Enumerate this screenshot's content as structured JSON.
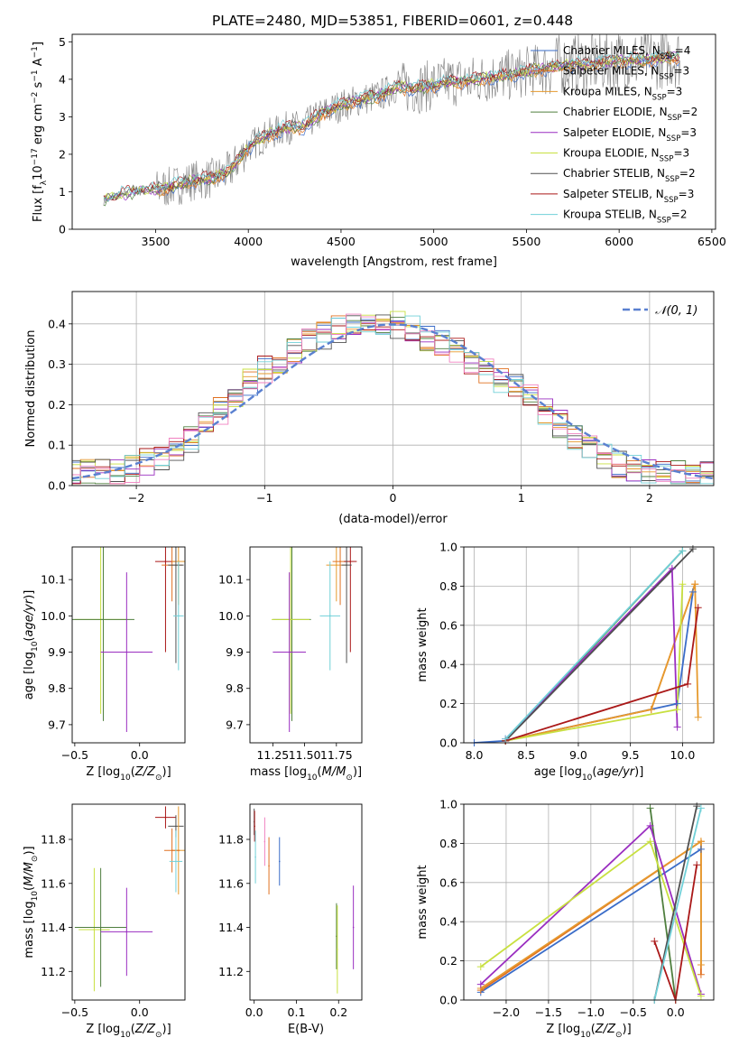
{
  "title": "PLATE=2480, MJD=53851, FIBERID=0601, z=0.448",
  "colors": {
    "Chabrier MILES": "#3a6cc8",
    "Salpeter MILES": "#e07020",
    "Kroupa MILES": "#e69a2e",
    "Chabrier ELODIE": "#4f7f3f",
    "Salpeter ELODIE": "#9a2ec0",
    "Kroupa ELODIE": "#c8e040",
    "Chabrier STELIB": "#505050",
    "Salpeter STELIB": "#aa1818",
    "Kroupa STELIB": "#70d0d8",
    "extra pink": "#f080c0",
    "normal": "#5a80d0",
    "data": "#808080"
  },
  "chart_data": [
    {
      "id": "spectrum",
      "type": "line",
      "xlabel": "wavelength [Angstrom, rest frame]",
      "ylabel": "Flux [f_λ 10^-17 erg cm^-2 s^-1 A^-1]",
      "xlim": [
        3050,
        6520
      ],
      "ylim": [
        0,
        5.2
      ],
      "xticks": [
        3500,
        4000,
        4500,
        5000,
        5500,
        6000,
        6500
      ],
      "yticks": [
        0,
        1,
        2,
        3,
        4,
        5
      ],
      "legend_position": "upper-right",
      "legend": [
        {
          "base": "Chabrier MILES",
          "sub": "SSP",
          "n": "4"
        },
        {
          "base": "Salpeter MILES",
          "sub": "SSP",
          "n": "3"
        },
        {
          "base": "Kroupa MILES",
          "sub": "SSP",
          "n": "3"
        },
        {
          "base": "Chabrier ELODIE",
          "sub": "SSP",
          "n": "2"
        },
        {
          "base": "Salpeter ELODIE",
          "sub": "SSP",
          "n": "3"
        },
        {
          "base": "Kroupa ELODIE",
          "sub": "SSP",
          "n": "3"
        },
        {
          "base": "Chabrier STELIB",
          "sub": "SSP",
          "n": "2"
        },
        {
          "base": "Salpeter STELIB",
          "sub": "SSP",
          "n": "3"
        },
        {
          "base": "Kroupa STELIB",
          "sub": "SSP",
          "n": "2"
        }
      ],
      "continuum": [
        [
          3220,
          0.75
        ],
        [
          3300,
          0.9
        ],
        [
          3400,
          1.0
        ],
        [
          3500,
          1.05
        ],
        [
          3600,
          1.15
        ],
        [
          3700,
          1.3
        ],
        [
          3800,
          1.35
        ],
        [
          3900,
          1.55
        ],
        [
          4000,
          2.2
        ],
        [
          4100,
          2.5
        ],
        [
          4200,
          2.7
        ],
        [
          4300,
          2.75
        ],
        [
          4400,
          3.1
        ],
        [
          4500,
          3.3
        ],
        [
          4600,
          3.45
        ],
        [
          4700,
          3.55
        ],
        [
          4800,
          3.8
        ],
        [
          4900,
          3.75
        ],
        [
          5000,
          3.85
        ],
        [
          5100,
          3.95
        ],
        [
          5200,
          3.95
        ],
        [
          5300,
          4.05
        ],
        [
          5400,
          4.1
        ],
        [
          5500,
          4.2
        ],
        [
          5600,
          4.3
        ],
        [
          5700,
          4.4
        ],
        [
          5800,
          4.4
        ],
        [
          5900,
          4.45
        ],
        [
          6000,
          4.5
        ],
        [
          6100,
          4.5
        ],
        [
          6200,
          4.55
        ],
        [
          6330,
          4.6
        ]
      ],
      "models": [
        {
          "name": "Chabrier MILES",
          "range": [
            3500,
            6330
          ]
        },
        {
          "name": "Salpeter MILES",
          "range": [
            3500,
            6330
          ]
        },
        {
          "name": "Kroupa MILES",
          "range": [
            3500,
            6330
          ]
        },
        {
          "name": "Chabrier ELODIE",
          "range": [
            3220,
            6330
          ]
        },
        {
          "name": "Salpeter ELODIE",
          "range": [
            3220,
            6330
          ]
        },
        {
          "name": "Kroupa ELODIE",
          "range": [
            3220,
            6330
          ]
        },
        {
          "name": "Chabrier STELIB",
          "range": [
            3220,
            6330
          ]
        },
        {
          "name": "Salpeter STELIB",
          "range": [
            3220,
            6330
          ]
        },
        {
          "name": "Kroupa STELIB",
          "range": [
            3220,
            6330
          ]
        }
      ]
    },
    {
      "id": "residuals",
      "type": "line",
      "xlabel": "(data-model)/error",
      "ylabel": "Normed distribution",
      "xlim": [
        -2.5,
        2.5
      ],
      "ylim": [
        0,
        0.48
      ],
      "xticks": [
        -2,
        -1,
        0,
        1,
        2
      ],
      "yticks": [
        0.0,
        0.1,
        0.2,
        0.3,
        0.4
      ],
      "grid": true,
      "legend_position": "upper-right",
      "legend": [
        "𝒩(0, 1)"
      ],
      "bin_width": 0.1,
      "histogram_envelope": [
        0.03,
        0.03,
        0.05,
        0.06,
        0.07,
        0.09,
        0.11,
        0.14,
        0.17,
        0.2,
        0.23,
        0.26,
        0.29,
        0.31,
        0.33,
        0.35,
        0.36,
        0.38,
        0.39,
        0.4,
        0.41,
        0.41,
        0.4,
        0.39,
        0.38,
        0.36,
        0.35,
        0.33,
        0.31,
        0.29,
        0.27,
        0.25,
        0.23,
        0.21,
        0.18,
        0.15,
        0.12,
        0.1,
        0.08,
        0.06,
        0.05,
        0.04,
        0.035,
        0.03,
        0.03
      ]
    },
    {
      "id": "age_vs_Z",
      "type": "scatter",
      "xlabel": "Z [log10(Z/Z⊙)]",
      "ylabel": "age  [log10(age/yr)]",
      "xlim": [
        -0.52,
        0.35
      ],
      "ylim": [
        9.65,
        10.19
      ],
      "xticks": [
        -0.5,
        0.0
      ],
      "yticks": [
        9.7,
        9.8,
        9.9,
        10.0,
        10.1
      ],
      "points": [
        {
          "c": "Kroupa ELODIE",
          "x": -0.3,
          "y": 9.99,
          "ex": 0.2,
          "ey": 0.26
        },
        {
          "c": "Chabrier ELODIE",
          "x": -0.28,
          "y": 9.99,
          "ex": 0.24,
          "ey": 0.28
        },
        {
          "c": "Salpeter ELODIE",
          "x": -0.1,
          "y": 9.9,
          "ex": 0.2,
          "ey": 0.22
        },
        {
          "c": "Salpeter STELIB",
          "x": 0.2,
          "y": 10.15,
          "ex": 0.08,
          "ey": 0.25
        },
        {
          "c": "Kroupa MILES",
          "x": 0.3,
          "y": 10.15,
          "ex": 0.05,
          "ey": 0.12
        },
        {
          "c": "Salpeter MILES",
          "x": 0.25,
          "y": 10.14,
          "ex": 0.08,
          "ey": 0.1
        },
        {
          "c": "Chabrier STELIB",
          "x": 0.28,
          "y": 10.14,
          "ex": 0.06,
          "ey": 0.27
        },
        {
          "c": "Kroupa STELIB",
          "x": 0.3,
          "y": 10.0,
          "ex": 0.04,
          "ey": 0.15
        }
      ]
    },
    {
      "id": "age_vs_mass",
      "type": "scatter",
      "xlabel": "mass [log10(M/M⊙)]",
      "ylabel": "",
      "xlim": [
        11.07,
        11.95
      ],
      "ylim": [
        9.65,
        10.19
      ],
      "xticks": [
        11.25,
        11.5,
        11.75
      ],
      "yticks": [
        9.7,
        9.8,
        9.9,
        10.0,
        10.1
      ],
      "points": [
        {
          "c": "Chabrier ELODIE",
          "x": 11.4,
          "y": 9.99,
          "ex": 0.15,
          "ey": 0.28
        },
        {
          "c": "Kroupa ELODIE",
          "x": 11.39,
          "y": 9.99,
          "ex": 0.15,
          "ey": 0.26
        },
        {
          "c": "Salpeter ELODIE",
          "x": 11.38,
          "y": 9.9,
          "ex": 0.13,
          "ey": 0.22
        },
        {
          "c": "Kroupa MILES",
          "x": 11.75,
          "y": 10.14,
          "ex": 0.08,
          "ey": 0.1
        },
        {
          "c": "Salpeter MILES",
          "x": 11.78,
          "y": 10.15,
          "ex": 0.06,
          "ey": 0.12
        },
        {
          "c": "Salpeter STELIB",
          "x": 11.86,
          "y": 10.15,
          "ex": 0.05,
          "ey": 0.25
        },
        {
          "c": "Chabrier STELIB",
          "x": 11.83,
          "y": 10.14,
          "ex": 0.04,
          "ey": 0.27
        },
        {
          "c": "Kroupa STELIB",
          "x": 11.7,
          "y": 10.0,
          "ex": 0.08,
          "ey": 0.15
        }
      ]
    },
    {
      "id": "weight_vs_age",
      "type": "line",
      "xlabel": "age  [log10(age/yr)]",
      "ylabel": "mass weight",
      "xlim": [
        7.9,
        10.3
      ],
      "ylim": [
        0,
        1
      ],
      "xticks": [
        8.0,
        8.5,
        9.0,
        9.5,
        10.0
      ],
      "yticks": [
        0.0,
        0.2,
        0.4,
        0.6,
        0.8,
        1.0
      ],
      "grid": true,
      "series": [
        {
          "c": "Chabrier MILES",
          "pts": [
            [
              8.0,
              0.0
            ],
            [
              8.3,
              0.01
            ],
            [
              9.95,
              0.2
            ],
            [
              10.1,
              0.77
            ]
          ]
        },
        {
          "c": "Salpeter MILES",
          "pts": [
            [
              8.3,
              0.01
            ],
            [
              9.7,
              0.17
            ],
            [
              10.12,
              0.81
            ]
          ]
        },
        {
          "c": "Kroupa MILES",
          "pts": [
            [
              8.3,
              0.01
            ],
            [
              9.7,
              0.17
            ],
            [
              10.12,
              0.81
            ],
            [
              10.15,
              0.13
            ]
          ]
        },
        {
          "c": "Chabrier ELODIE",
          "pts": [
            [
              8.3,
              0.01
            ],
            [
              10.0,
              0.98
            ]
          ]
        },
        {
          "c": "Salpeter ELODIE",
          "pts": [
            [
              8.3,
              0.02
            ],
            [
              9.9,
              0.89
            ],
            [
              9.95,
              0.08
            ]
          ]
        },
        {
          "c": "Kroupa ELODIE",
          "pts": [
            [
              8.3,
              0.01
            ],
            [
              9.95,
              0.17
            ],
            [
              10.0,
              0.81
            ]
          ]
        },
        {
          "c": "Chabrier STELIB",
          "pts": [
            [
              8.3,
              0.01
            ],
            [
              10.1,
              0.99
            ]
          ]
        },
        {
          "c": "Salpeter STELIB",
          "pts": [
            [
              8.3,
              0.01
            ],
            [
              10.05,
              0.3
            ],
            [
              10.15,
              0.69
            ]
          ]
        },
        {
          "c": "Kroupa STELIB",
          "pts": [
            [
              8.3,
              0.02
            ],
            [
              10.0,
              0.98
            ]
          ]
        }
      ]
    },
    {
      "id": "mass_vs_Z",
      "type": "scatter",
      "xlabel": "Z [log10(Z/Z⊙)]",
      "ylabel": "mass [log10(M/M⊙)]",
      "xlim": [
        -0.52,
        0.35
      ],
      "ylim": [
        11.07,
        11.96
      ],
      "xticks": [
        -0.5,
        0.0
      ],
      "yticks": [
        11.2,
        11.4,
        11.6,
        11.8
      ],
      "points": [
        {
          "c": "Kroupa ELODIE",
          "x": -0.35,
          "y": 11.39,
          "ex": 0.12,
          "ey": 0.28
        },
        {
          "c": "Chabrier ELODIE",
          "x": -0.3,
          "y": 11.4,
          "ex": 0.2,
          "ey": 0.27
        },
        {
          "c": "Salpeter ELODIE",
          "x": -0.1,
          "y": 11.38,
          "ex": 0.2,
          "ey": 0.2
        },
        {
          "c": "Salpeter STELIB",
          "x": 0.2,
          "y": 11.9,
          "ex": 0.08,
          "ey": 0.05
        },
        {
          "c": "Chabrier STELIB",
          "x": 0.28,
          "y": 11.86,
          "ex": 0.06,
          "ey": 0.05
        },
        {
          "c": "Kroupa MILES",
          "x": 0.3,
          "y": 11.75,
          "ex": 0.05,
          "ey": 0.2
        },
        {
          "c": "Salpeter MILES",
          "x": 0.25,
          "y": 11.75,
          "ex": 0.06,
          "ey": 0.1
        },
        {
          "c": "Kroupa STELIB",
          "x": 0.28,
          "y": 11.7,
          "ex": 0.05,
          "ey": 0.14
        }
      ]
    },
    {
      "id": "mass_vs_EBV",
      "type": "scatter",
      "xlabel": "E(B-V)",
      "ylabel": "",
      "xlim": [
        -0.01,
        0.255
      ],
      "ylim": [
        11.07,
        11.96
      ],
      "xticks": [
        0.0,
        0.1,
        0.2
      ],
      "yticks": [
        11.2,
        11.4,
        11.6,
        11.8
      ],
      "points": [
        {
          "c": "Chabrier STELIB",
          "x": 0.0,
          "y": 11.88,
          "ex": 0,
          "ey": 0.06
        },
        {
          "c": "Salpeter STELIB",
          "x": 0.001,
          "y": 11.86,
          "ex": 0,
          "ey": 0.07
        },
        {
          "c": "Kroupa STELIB",
          "x": 0.003,
          "y": 11.72,
          "ex": 0,
          "ey": 0.12
        },
        {
          "c": "extra pink",
          "x": 0.025,
          "y": 11.79,
          "ex": 0,
          "ey": 0.11
        },
        {
          "c": "Salpeter MILES",
          "x": 0.035,
          "y": 11.68,
          "ex": 0,
          "ey": 0.13
        },
        {
          "c": "Chabrier MILES",
          "x": 0.06,
          "y": 11.7,
          "ex": 0,
          "ey": 0.11
        },
        {
          "c": "Chabrier ELODIE",
          "x": 0.195,
          "y": 11.36,
          "ex": 0,
          "ey": 0.15
        },
        {
          "c": "Kroupa ELODIE",
          "x": 0.197,
          "y": 11.3,
          "ex": 0,
          "ey": 0.2
        },
        {
          "c": "Salpeter ELODIE",
          "x": 0.235,
          "y": 11.4,
          "ex": 0,
          "ey": 0.19
        }
      ]
    },
    {
      "id": "weight_vs_Z",
      "type": "line",
      "xlabel": "Z [log10(Z/Z⊙)]",
      "ylabel": "mass weight",
      "xlim": [
        -2.5,
        0.45
      ],
      "ylim": [
        0,
        1
      ],
      "xticks": [
        -2.0,
        -1.5,
        -1.0,
        -0.5,
        0.0
      ],
      "yticks": [
        0.0,
        0.2,
        0.4,
        0.6,
        0.8,
        1.0
      ],
      "grid": true,
      "series": [
        {
          "c": "Chabrier MILES",
          "pts": [
            [
              -2.3,
              0.04
            ],
            [
              0.3,
              0.77
            ]
          ]
        },
        {
          "c": "Salpeter MILES",
          "pts": [
            [
              -2.3,
              0.05
            ],
            [
              0.3,
              0.81
            ],
            [
              0.3,
              0.13
            ]
          ]
        },
        {
          "c": "Kroupa MILES",
          "pts": [
            [
              -2.3,
              0.06
            ],
            [
              0.3,
              0.81
            ],
            [
              0.3,
              0.18
            ]
          ]
        },
        {
          "c": "Chabrier ELODIE",
          "pts": [
            [
              -0.3,
              0.98
            ],
            [
              0.0,
              0.0
            ]
          ]
        },
        {
          "c": "Salpeter ELODIE",
          "pts": [
            [
              -2.3,
              0.08
            ],
            [
              -0.3,
              0.89
            ],
            [
              0.3,
              0.03
            ]
          ]
        },
        {
          "c": "Kroupa ELODIE",
          "pts": [
            [
              -2.3,
              0.17
            ],
            [
              -0.3,
              0.81
            ],
            [
              0.3,
              0.02
            ]
          ]
        },
        {
          "c": "Chabrier STELIB",
          "pts": [
            [
              -0.25,
              0.0
            ],
            [
              0.25,
              0.99
            ]
          ]
        },
        {
          "c": "Salpeter STELIB",
          "pts": [
            [
              -0.25,
              0.3
            ],
            [
              0.0,
              0.0
            ],
            [
              0.25,
              0.69
            ]
          ]
        },
        {
          "c": "Kroupa STELIB",
          "pts": [
            [
              -0.25,
              0.0
            ],
            [
              0.3,
              0.98
            ]
          ]
        }
      ]
    }
  ]
}
